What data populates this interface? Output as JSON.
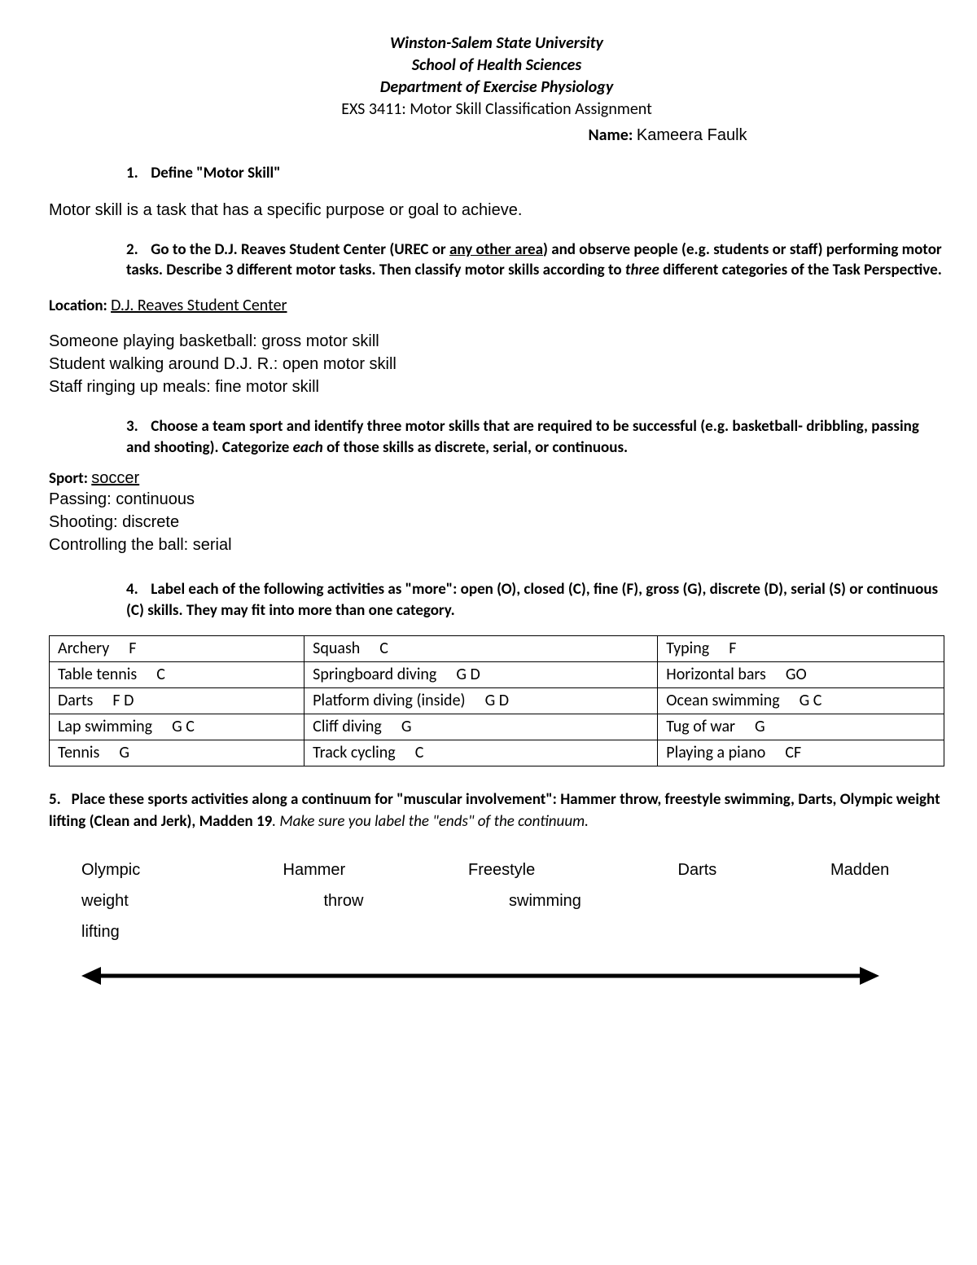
{
  "header": {
    "line1": "Winston-Salem State University",
    "line2": "School of Health Sciences",
    "line3": "Department of Exercise Physiology",
    "course": "EXS 3411: Motor Skill Classification Assignment",
    "name_label": "Name: ",
    "name_value": "Kameera Faulk"
  },
  "q1": {
    "num": "1.",
    "text": "Define \"Motor Skill\"",
    "answer": "Motor skill is a task that has a specific purpose or goal to achieve."
  },
  "q2": {
    "num": "2.",
    "pre": "Go to the D.J. Reaves Student Center (UREC or ",
    "underline": "any other area",
    "post1": ") and observe people (e.g. students or staff) performing motor tasks. Describe 3 different motor tasks. Then classify motor skills according to ",
    "italic": "three",
    "post2": " different categories of the Task Perspective.",
    "location_label": "Location: ",
    "location_value": "D.J. Reaves Student Center",
    "obs1": "Someone playing basketball: gross motor skill",
    "obs2": "Student walking around D.J. R.: open motor skill",
    "obs3": "Staff ringing up meals: fine motor skill"
  },
  "q3": {
    "num": "3.",
    "text1": "Choose a team sport and identify three motor skills that are required to be successful (e.g. basketball- dribbling, passing and shooting). Categorize ",
    "italic": "each",
    "text2": " of those skills as discrete, serial, or continuous.",
    "sport_label": "Sport:  ",
    "sport_value": "soccer",
    "l1": "Passing: continuous",
    "l2": "Shooting: discrete",
    "l3": "Controlling the ball: serial"
  },
  "q4": {
    "num": "4.",
    "text": "Label each of the following activities as \"more\": open (O), closed (C), fine (F), gross (G), discrete (D), serial (S) or continuous (C) skills.  They may fit into more than one category.",
    "table": [
      [
        [
          "Archery",
          "F"
        ],
        [
          "Squash",
          "C"
        ],
        [
          "Typing",
          "F"
        ]
      ],
      [
        [
          "Table tennis",
          "C"
        ],
        [
          "Springboard diving",
          "G D"
        ],
        [
          "Horizontal bars",
          "GO"
        ]
      ],
      [
        [
          "Darts",
          "F D"
        ],
        [
          "Platform diving (inside)",
          "G D"
        ],
        [
          "Ocean swimming",
          "G C"
        ]
      ],
      [
        [
          "Lap swimming",
          "G C"
        ],
        [
          "Cliff diving",
          "G"
        ],
        [
          "Tug of war",
          "G"
        ]
      ],
      [
        [
          "Tennis",
          "G"
        ],
        [
          "Track cycling",
          "C"
        ],
        [
          "Playing a piano",
          "CF"
        ]
      ]
    ]
  },
  "q5": {
    "num": "5.",
    "text1": "Place these sports activities along a continuum for \"muscular involvement\":  Hammer throw, freestyle swimming, Darts, Olympic weight lifting (Clean and Jerk), Madden 19",
    "text2": ".  Make sure you label the \"ends\" of the continuum.",
    "items": [
      [
        "Olympic",
        "weight",
        "lifting"
      ],
      [
        "Hammer",
        "throw",
        ""
      ],
      [
        "Freestyle",
        "swimming",
        ""
      ],
      [
        "Darts",
        "",
        ""
      ],
      [
        "Madden",
        "",
        ""
      ]
    ]
  },
  "style": {
    "page_bg": "#ffffff",
    "text_color": "#000000",
    "table_border": "#000000",
    "arrow_color": "#000000"
  }
}
